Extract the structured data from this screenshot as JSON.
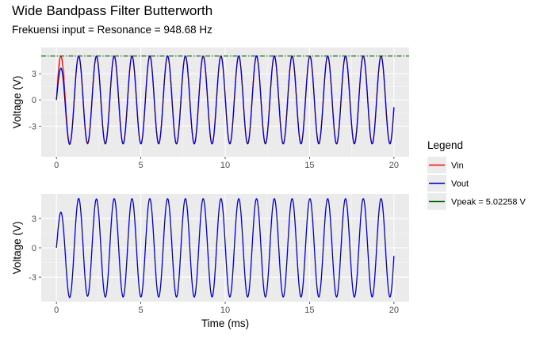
{
  "title": "Wide Bandpass Filter Butterworth",
  "subtitle": "Frekuensi input = Resonance = 948.68 Hz",
  "legend": {
    "title": "Legend",
    "items": [
      {
        "label": "Vin",
        "color": "#ff0000"
      },
      {
        "label": "Vout",
        "color": "#0000cc"
      },
      {
        "label": "Vpeak =  5.02258  V",
        "color": "#006400"
      }
    ]
  },
  "chart_data": [
    {
      "type": "line",
      "xlabel": "",
      "ylabel": "Voltage (V)",
      "xlim": [
        -0.9,
        20.9
      ],
      "ylim": [
        -6.5,
        6.0
      ],
      "x_ticks": [
        0,
        5,
        10,
        15,
        20
      ],
      "y_ticks": [
        -3,
        0,
        3
      ],
      "grid": true,
      "signal": {
        "frequency_hz": 948.68,
        "amplitude_v": 5.02258,
        "x_range_ms": [
          0,
          20
        ]
      },
      "series": [
        {
          "name": "Vin",
          "color": "#ff0000",
          "shape": "sine",
          "amplitude": 5.02258,
          "frequency_hz": 948.68
        },
        {
          "name": "Vout",
          "color": "#0000cc",
          "shape": "bandpass-response",
          "amplitude": 5.02258,
          "frequency_hz": 948.68
        },
        {
          "name": "Vpeak =  5.02258  V",
          "color": "#006400",
          "shape": "hline",
          "value": 5.02258,
          "dash": "dotdash"
        }
      ]
    },
    {
      "type": "line",
      "xlabel": "Time (ms)",
      "ylabel": "Voltage (V)",
      "xlim": [
        -0.9,
        20.9
      ],
      "ylim": [
        -5.5,
        5.5
      ],
      "x_ticks": [
        0,
        5,
        10,
        15,
        20
      ],
      "y_ticks": [
        -3,
        0,
        3
      ],
      "grid": true,
      "series": [
        {
          "name": "Vout",
          "color": "#0000cc",
          "shape": "bandpass-response",
          "amplitude": 5.02258,
          "frequency_hz": 948.68
        }
      ]
    }
  ]
}
